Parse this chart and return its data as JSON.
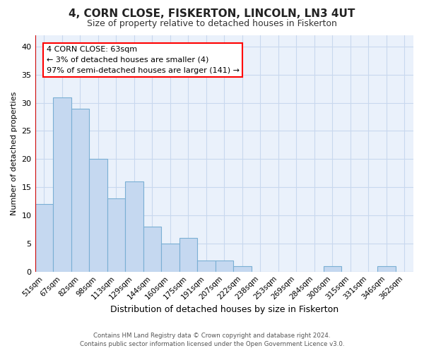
{
  "title": "4, CORN CLOSE, FISKERTON, LINCOLN, LN3 4UT",
  "subtitle": "Size of property relative to detached houses in Fiskerton",
  "xlabel": "Distribution of detached houses by size in Fiskerton",
  "ylabel": "Number of detached properties",
  "bin_labels": [
    "51sqm",
    "67sqm",
    "82sqm",
    "98sqm",
    "113sqm",
    "129sqm",
    "144sqm",
    "160sqm",
    "175sqm",
    "191sqm",
    "207sqm",
    "222sqm",
    "238sqm",
    "253sqm",
    "269sqm",
    "284sqm",
    "300sqm",
    "315sqm",
    "331sqm",
    "346sqm",
    "362sqm"
  ],
  "bar_heights": [
    12,
    31,
    29,
    20,
    13,
    16,
    8,
    5,
    6,
    2,
    2,
    1,
    0,
    0,
    0,
    0,
    1,
    0,
    0,
    1,
    0
  ],
  "bar_color": "#c5d8f0",
  "bar_edge_color": "#7aafd4",
  "ylim": [
    0,
    42
  ],
  "yticks": [
    0,
    5,
    10,
    15,
    20,
    25,
    30,
    35,
    40
  ],
  "annotation_text": "4 CORN CLOSE: 63sqm\n← 3% of detached houses are smaller (4)\n97% of semi-detached houses are larger (141) →",
  "bg_color": "#ffffff",
  "plot_bg_color": "#eaf1fb",
  "grid_color": "#c8d8ee",
  "vline_x": -0.5,
  "vline_color": "#cc0000",
  "footer_line1": "Contains HM Land Registry data © Crown copyright and database right 2024.",
  "footer_line2": "Contains public sector information licensed under the Open Government Licence v3.0.",
  "title_fontsize": 11,
  "subtitle_fontsize": 9,
  "ylabel_fontsize": 8,
  "xlabel_fontsize": 9
}
